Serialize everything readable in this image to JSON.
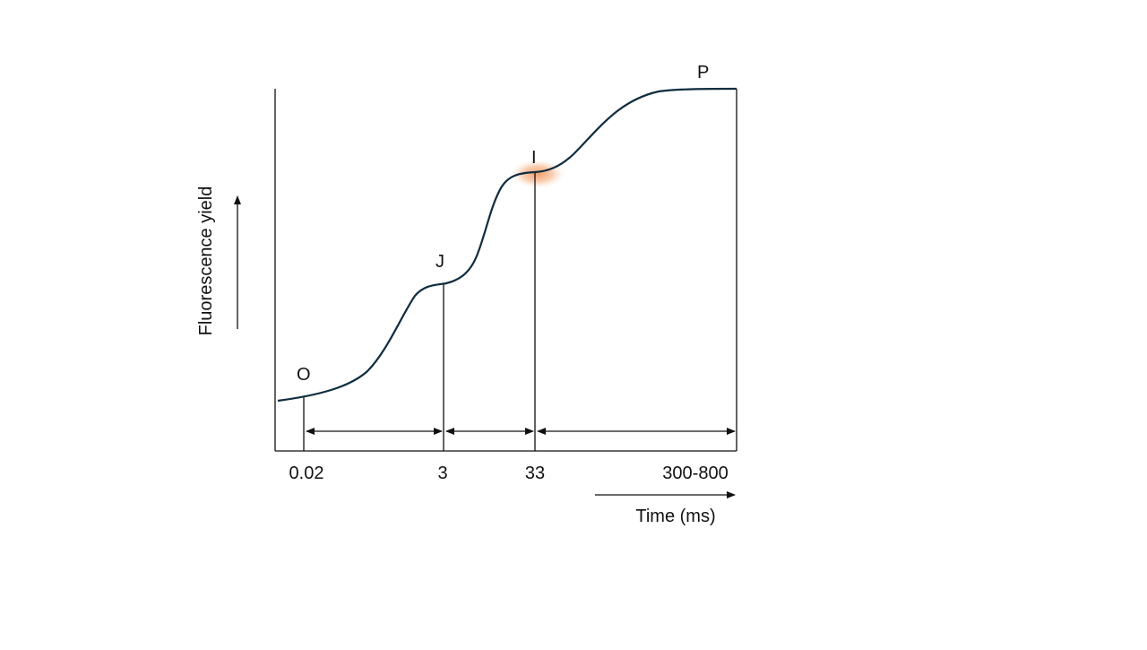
{
  "diagram": {
    "phase_labels": {
      "o": "O",
      "j": "J",
      "i": "I",
      "p": "P"
    },
    "time_ticks": {
      "t1": "0.02",
      "t2": "3",
      "t3": "33",
      "t4": "300-800"
    },
    "x_axis_title": "Time (ms)",
    "y_axis_title": "Fluorescence yield",
    "colors": {
      "curve": "#0f2d3f",
      "lines": "#111111",
      "highlight": "#f4a26b"
    }
  }
}
